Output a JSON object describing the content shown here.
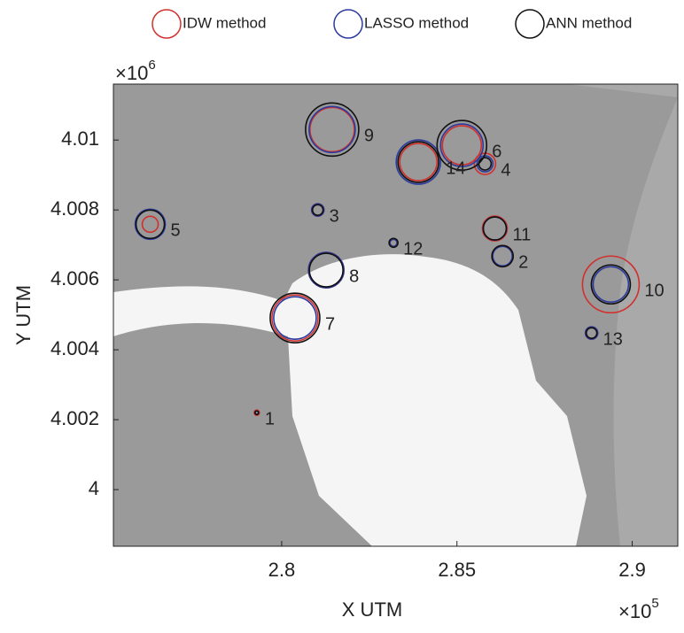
{
  "chart_data": {
    "type": "scatter",
    "xlabel": "X UTM",
    "ylabel": "Y UTM",
    "x_exponent": {
      "base": "×10",
      "power": "5"
    },
    "y_exponent": {
      "base": "×10",
      "power": "6"
    },
    "xlim": [
      2.752,
      2.913
    ],
    "ylim": [
      3.99838,
      4.0116
    ],
    "xticks": [
      2.8,
      2.85,
      2.9
    ],
    "yticks": [
      4,
      4.002,
      4.004,
      4.006,
      4.008,
      4.01
    ],
    "point_labels": [
      "1",
      "2",
      "3",
      "4",
      "5",
      "6",
      "7",
      "8",
      "9",
      "10",
      "11",
      "12",
      "13",
      "14"
    ],
    "x": [
      2.7929,
      2.863,
      2.8103,
      2.858,
      2.7625,
      2.8514,
      2.8038,
      2.8127,
      2.8144,
      2.8939,
      2.8608,
      2.8319,
      2.8884,
      2.839
    ],
    "y": [
      4.0022,
      4.00668,
      4.008,
      4.00932,
      4.00759,
      4.00985,
      4.00491,
      4.00628,
      4.0103,
      4.00587,
      4.00747,
      4.00706,
      4.00448,
      4.00937
    ],
    "series": [
      {
        "name": "IDW method",
        "color": "#d0312d",
        "sizes": [
          3,
          12,
          7,
          12,
          9,
          22,
          26,
          20,
          25,
          32,
          14,
          4,
          7,
          21
        ]
      },
      {
        "name": "LASSO method",
        "color": "#2b3a9e",
        "sizes": [
          2,
          11,
          7,
          9,
          17,
          24,
          24,
          20,
          26,
          20,
          13,
          4,
          7,
          25
        ]
      },
      {
        "name": "ANN method",
        "color": "#111111",
        "sizes": [
          2,
          12,
          6,
          7,
          16,
          28,
          28,
          19,
          30,
          22,
          13,
          5,
          6,
          23
        ]
      }
    ]
  }
}
